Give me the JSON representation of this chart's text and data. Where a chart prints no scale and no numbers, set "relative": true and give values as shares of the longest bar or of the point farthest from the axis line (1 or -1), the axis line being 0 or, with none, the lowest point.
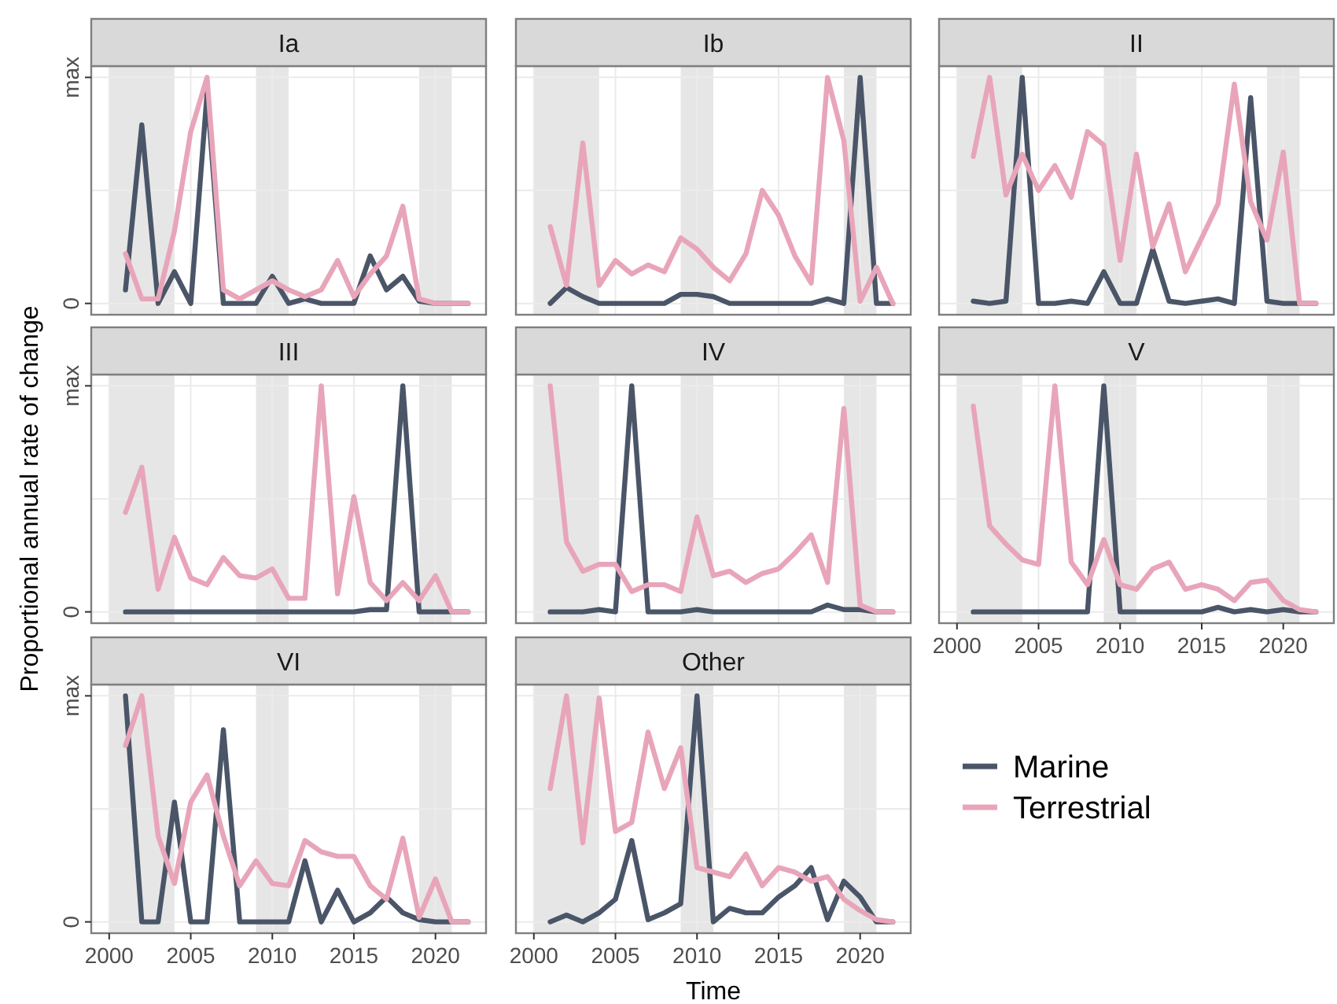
{
  "chart_data": [
    {
      "type": "line",
      "title": "Ia",
      "relative": true,
      "annotations": [
        "0",
        "max"
      ],
      "x": [
        2001,
        2002,
        2003,
        2004,
        2005,
        2006,
        2007,
        2008,
        2009,
        2010,
        2011,
        2012,
        2013,
        2014,
        2015,
        2016,
        2017,
        2018,
        2019,
        2020,
        2021,
        2022
      ],
      "xlim": [
        1998.9,
        2023.1
      ],
      "xticks": [
        2000,
        2005,
        2010,
        2015,
        2020
      ],
      "grid": true,
      "tick_labels": "y",
      "bands": [
        {
          "axis": "x",
          "from": 2000,
          "to": 2004,
          "color": "#e6e6e6"
        },
        {
          "axis": "x",
          "from": 2009,
          "to": 2011,
          "color": "#e6e6e6"
        },
        {
          "axis": "x",
          "from": 2019,
          "to": 2021,
          "color": "#e6e6e6"
        }
      ],
      "series": [
        {
          "color": "#4a5568",
          "values": [
            0.06,
            0.79,
            0,
            0.14,
            0,
            0.93,
            0,
            0,
            0,
            0.12,
            0,
            0.02,
            0,
            0,
            0,
            0.21,
            0.06,
            0.12,
            0.01,
            0,
            0,
            0
          ]
        },
        {
          "color": "#e8a5b9",
          "values": [
            0.22,
            0.02,
            0.02,
            0.32,
            0.76,
            1,
            0.06,
            0.02,
            0.06,
            0.1,
            0.06,
            0.03,
            0.06,
            0.19,
            0.03,
            0.13,
            0.21,
            0.43,
            0.02,
            0,
            0,
            0
          ]
        }
      ]
    },
    {
      "type": "line",
      "title": "Ib",
      "relative": true,
      "x": [
        2001,
        2002,
        2003,
        2004,
        2005,
        2006,
        2007,
        2008,
        2009,
        2010,
        2011,
        2012,
        2013,
        2014,
        2015,
        2016,
        2017,
        2018,
        2019,
        2020,
        2021,
        2022
      ],
      "xlim": [
        1998.9,
        2023.1
      ],
      "xticks": [
        2000,
        2005,
        2010,
        2015,
        2020
      ],
      "grid": true,
      "tick_labels": false,
      "bands": [
        {
          "axis": "x",
          "from": 2000,
          "to": 2004,
          "color": "#e6e6e6"
        },
        {
          "axis": "x",
          "from": 2009,
          "to": 2011,
          "color": "#e6e6e6"
        },
        {
          "axis": "x",
          "from": 2019,
          "to": 2021,
          "color": "#e6e6e6"
        }
      ],
      "series": [
        {
          "color": "#4a5568",
          "values": [
            0,
            0.07,
            0.03,
            0,
            0,
            0,
            0,
            0,
            0.04,
            0.04,
            0.03,
            0,
            0,
            0,
            0,
            0,
            0,
            0.02,
            0,
            1,
            0,
            0
          ]
        },
        {
          "color": "#e8a5b9",
          "values": [
            0.34,
            0.08,
            0.71,
            0.08,
            0.19,
            0.13,
            0.17,
            0.14,
            0.29,
            0.24,
            0.16,
            0.1,
            0.22,
            0.5,
            0.39,
            0.21,
            0.09,
            1,
            0.72,
            0.01,
            0.16,
            0
          ]
        }
      ]
    },
    {
      "type": "line",
      "title": "II",
      "relative": true,
      "x": [
        2001,
        2002,
        2003,
        2004,
        2005,
        2006,
        2007,
        2008,
        2009,
        2010,
        2011,
        2012,
        2013,
        2014,
        2015,
        2016,
        2017,
        2018,
        2019,
        2020,
        2021,
        2022
      ],
      "xlim": [
        1998.9,
        2023.1
      ],
      "xticks": [
        2000,
        2005,
        2010,
        2015,
        2020
      ],
      "grid": true,
      "tick_labels": false,
      "bands": [
        {
          "axis": "x",
          "from": 2000,
          "to": 2004,
          "color": "#e6e6e6"
        },
        {
          "axis": "x",
          "from": 2009,
          "to": 2011,
          "color": "#e6e6e6"
        },
        {
          "axis": "x",
          "from": 2019,
          "to": 2021,
          "color": "#e6e6e6"
        }
      ],
      "series": [
        {
          "color": "#4a5568",
          "values": [
            0.01,
            0,
            0.01,
            1,
            0,
            0,
            0.01,
            0,
            0.14,
            0,
            0,
            0.24,
            0.01,
            0,
            0.01,
            0.02,
            0,
            0.91,
            0.01,
            0,
            0,
            0
          ]
        },
        {
          "color": "#e8a5b9",
          "values": [
            0.65,
            1,
            0.48,
            0.66,
            0.5,
            0.61,
            0.47,
            0.76,
            0.7,
            0.19,
            0.66,
            0.25,
            0.44,
            0.14,
            0.29,
            0.44,
            0.97,
            0.45,
            0.28,
            0.67,
            0,
            0
          ]
        }
      ]
    },
    {
      "type": "line",
      "title": "III",
      "relative": true,
      "ylabel": "Proportional annual rate of change",
      "x": [
        2001,
        2002,
        2003,
        2004,
        2005,
        2006,
        2007,
        2008,
        2009,
        2010,
        2011,
        2012,
        2013,
        2014,
        2015,
        2016,
        2017,
        2018,
        2019,
        2020,
        2021,
        2022
      ],
      "xlim": [
        1998.9,
        2023.1
      ],
      "xticks": [
        2000,
        2005,
        2010,
        2015,
        2020
      ],
      "annotations": [
        "0",
        "max"
      ],
      "grid": true,
      "tick_labels": "y",
      "bands": [
        {
          "axis": "x",
          "from": 2000,
          "to": 2004,
          "color": "#e6e6e6"
        },
        {
          "axis": "x",
          "from": 2009,
          "to": 2011,
          "color": "#e6e6e6"
        },
        {
          "axis": "x",
          "from": 2019,
          "to": 2021,
          "color": "#e6e6e6"
        }
      ],
      "series": [
        {
          "color": "#4a5568",
          "values": [
            0,
            0,
            0,
            0,
            0,
            0,
            0,
            0,
            0,
            0,
            0,
            0,
            0,
            0,
            0,
            0.01,
            0.01,
            1,
            0,
            0,
            0,
            0
          ]
        },
        {
          "color": "#e8a5b9",
          "values": [
            0.44,
            0.64,
            0.1,
            0.33,
            0.15,
            0.12,
            0.24,
            0.16,
            0.15,
            0.19,
            0.06,
            0.06,
            1,
            0.08,
            0.51,
            0.13,
            0.05,
            0.13,
            0.05,
            0.16,
            0,
            0
          ]
        }
      ]
    },
    {
      "type": "line",
      "title": "IV",
      "relative": true,
      "x": [
        2001,
        2002,
        2003,
        2004,
        2005,
        2006,
        2007,
        2008,
        2009,
        2010,
        2011,
        2012,
        2013,
        2014,
        2015,
        2016,
        2017,
        2018,
        2019,
        2020,
        2021,
        2022
      ],
      "xlim": [
        1998.9,
        2023.1
      ],
      "xticks": [
        2000,
        2005,
        2010,
        2015,
        2020
      ],
      "grid": true,
      "tick_labels": false,
      "bands": [
        {
          "axis": "x",
          "from": 2000,
          "to": 2004,
          "color": "#e6e6e6"
        },
        {
          "axis": "x",
          "from": 2009,
          "to": 2011,
          "color": "#e6e6e6"
        },
        {
          "axis": "x",
          "from": 2019,
          "to": 2021,
          "color": "#e6e6e6"
        }
      ],
      "series": [
        {
          "color": "#4a5568",
          "values": [
            0,
            0,
            0,
            0.01,
            0,
            1,
            0,
            0,
            0,
            0.01,
            0,
            0,
            0,
            0,
            0,
            0,
            0,
            0.03,
            0.01,
            0.01,
            0,
            0
          ]
        },
        {
          "color": "#e8a5b9",
          "values": [
            1,
            0.31,
            0.18,
            0.21,
            0.21,
            0.09,
            0.12,
            0.12,
            0.09,
            0.42,
            0.16,
            0.18,
            0.13,
            0.17,
            0.19,
            0.26,
            0.34,
            0.13,
            0.9,
            0.03,
            0,
            0
          ]
        }
      ]
    },
    {
      "type": "line",
      "title": "V",
      "relative": true,
      "x": [
        2001,
        2002,
        2003,
        2004,
        2005,
        2006,
        2007,
        2008,
        2009,
        2010,
        2011,
        2012,
        2013,
        2014,
        2015,
        2016,
        2017,
        2018,
        2019,
        2020,
        2021,
        2022
      ],
      "xlim": [
        1998.9,
        2023.1
      ],
      "xticks": [
        2000,
        2005,
        2010,
        2015,
        2020
      ],
      "grid": true,
      "tick_labels": "x",
      "bands": [
        {
          "axis": "x",
          "from": 2000,
          "to": 2004,
          "color": "#e6e6e6"
        },
        {
          "axis": "x",
          "from": 2009,
          "to": 2011,
          "color": "#e6e6e6"
        },
        {
          "axis": "x",
          "from": 2019,
          "to": 2021,
          "color": "#e6e6e6"
        }
      ],
      "series": [
        {
          "color": "#4a5568",
          "values": [
            0,
            0,
            0,
            0,
            0,
            0,
            0,
            0,
            1,
            0,
            0,
            0,
            0,
            0,
            0,
            0.02,
            0,
            0.01,
            0,
            0.01,
            0,
            0
          ]
        },
        {
          "color": "#e8a5b9",
          "values": [
            0.91,
            0.38,
            0.3,
            0.23,
            0.21,
            1,
            0.22,
            0.12,
            0.32,
            0.12,
            0.1,
            0.19,
            0.22,
            0.1,
            0.12,
            0.1,
            0.05,
            0.13,
            0.14,
            0.05,
            0.01,
            0
          ]
        }
      ]
    },
    {
      "type": "line",
      "title": "VI",
      "relative": true,
      "annotations": [
        "0",
        "max"
      ],
      "x": [
        2001,
        2002,
        2003,
        2004,
        2005,
        2006,
        2007,
        2008,
        2009,
        2010,
        2011,
        2012,
        2013,
        2014,
        2015,
        2016,
        2017,
        2018,
        2019,
        2020,
        2021,
        2022
      ],
      "xlim": [
        1998.9,
        2023.1
      ],
      "xticks": [
        2000,
        2005,
        2010,
        2015,
        2020
      ],
      "grid": true,
      "bands": [
        {
          "axis": "x",
          "from": 2000,
          "to": 2004,
          "color": "#e6e6e6"
        },
        {
          "axis": "x",
          "from": 2009,
          "to": 2011,
          "color": "#e6e6e6"
        },
        {
          "axis": "x",
          "from": 2019,
          "to": 2021,
          "color": "#e6e6e6"
        }
      ],
      "series": [
        {
          "color": "#4a5568",
          "values": [
            1,
            0,
            0,
            0.53,
            0,
            0,
            0.85,
            0,
            0,
            0,
            0,
            0.27,
            0,
            0.14,
            0,
            0.04,
            0.11,
            0.04,
            0.01,
            0,
            0,
            0
          ]
        },
        {
          "color": "#e8a5b9",
          "values": [
            0.78,
            1,
            0.38,
            0.17,
            0.53,
            0.65,
            0.38,
            0.16,
            0.27,
            0.17,
            0.16,
            0.36,
            0.31,
            0.29,
            0.29,
            0.16,
            0.1,
            0.37,
            0.02,
            0.19,
            0,
            0
          ]
        }
      ]
    },
    {
      "type": "line",
      "title": "Other",
      "relative": true,
      "xlabel": "Time",
      "legend": "right",
      "x": [
        2001,
        2002,
        2003,
        2004,
        2005,
        2006,
        2007,
        2008,
        2009,
        2010,
        2011,
        2012,
        2013,
        2014,
        2015,
        2016,
        2017,
        2018,
        2019,
        2020,
        2021,
        2022
      ],
      "xlim": [
        1998.9,
        2023.1
      ],
      "xticks": [
        2000,
        2005,
        2010,
        2015,
        2020
      ],
      "grid": true,
      "tick_labels": "x",
      "bands": [
        {
          "axis": "x",
          "from": 2000,
          "to": 2004,
          "color": "#e6e6e6"
        },
        {
          "axis": "x",
          "from": 2009,
          "to": 2011,
          "color": "#e6e6e6"
        },
        {
          "axis": "x",
          "from": 2019,
          "to": 2021,
          "color": "#e6e6e6"
        }
      ],
      "series": [
        {
          "name": "Marine",
          "color": "#4a5568",
          "values": [
            0,
            0.03,
            0,
            0.04,
            0.1,
            0.36,
            0.01,
            0.04,
            0.08,
            1,
            0,
            0.06,
            0.04,
            0.04,
            0.11,
            0.16,
            0.24,
            0.01,
            0.18,
            0.11,
            0,
            0
          ]
        },
        {
          "name": "Terrestrial",
          "color": "#e8a5b9",
          "values": [
            0.59,
            1,
            0.35,
            0.99,
            0.4,
            0.44,
            0.84,
            0.59,
            0.77,
            0.24,
            0.22,
            0.2,
            0.3,
            0.16,
            0.24,
            0.22,
            0.18,
            0.2,
            0.1,
            0.05,
            0.01,
            0
          ]
        }
      ]
    }
  ]
}
